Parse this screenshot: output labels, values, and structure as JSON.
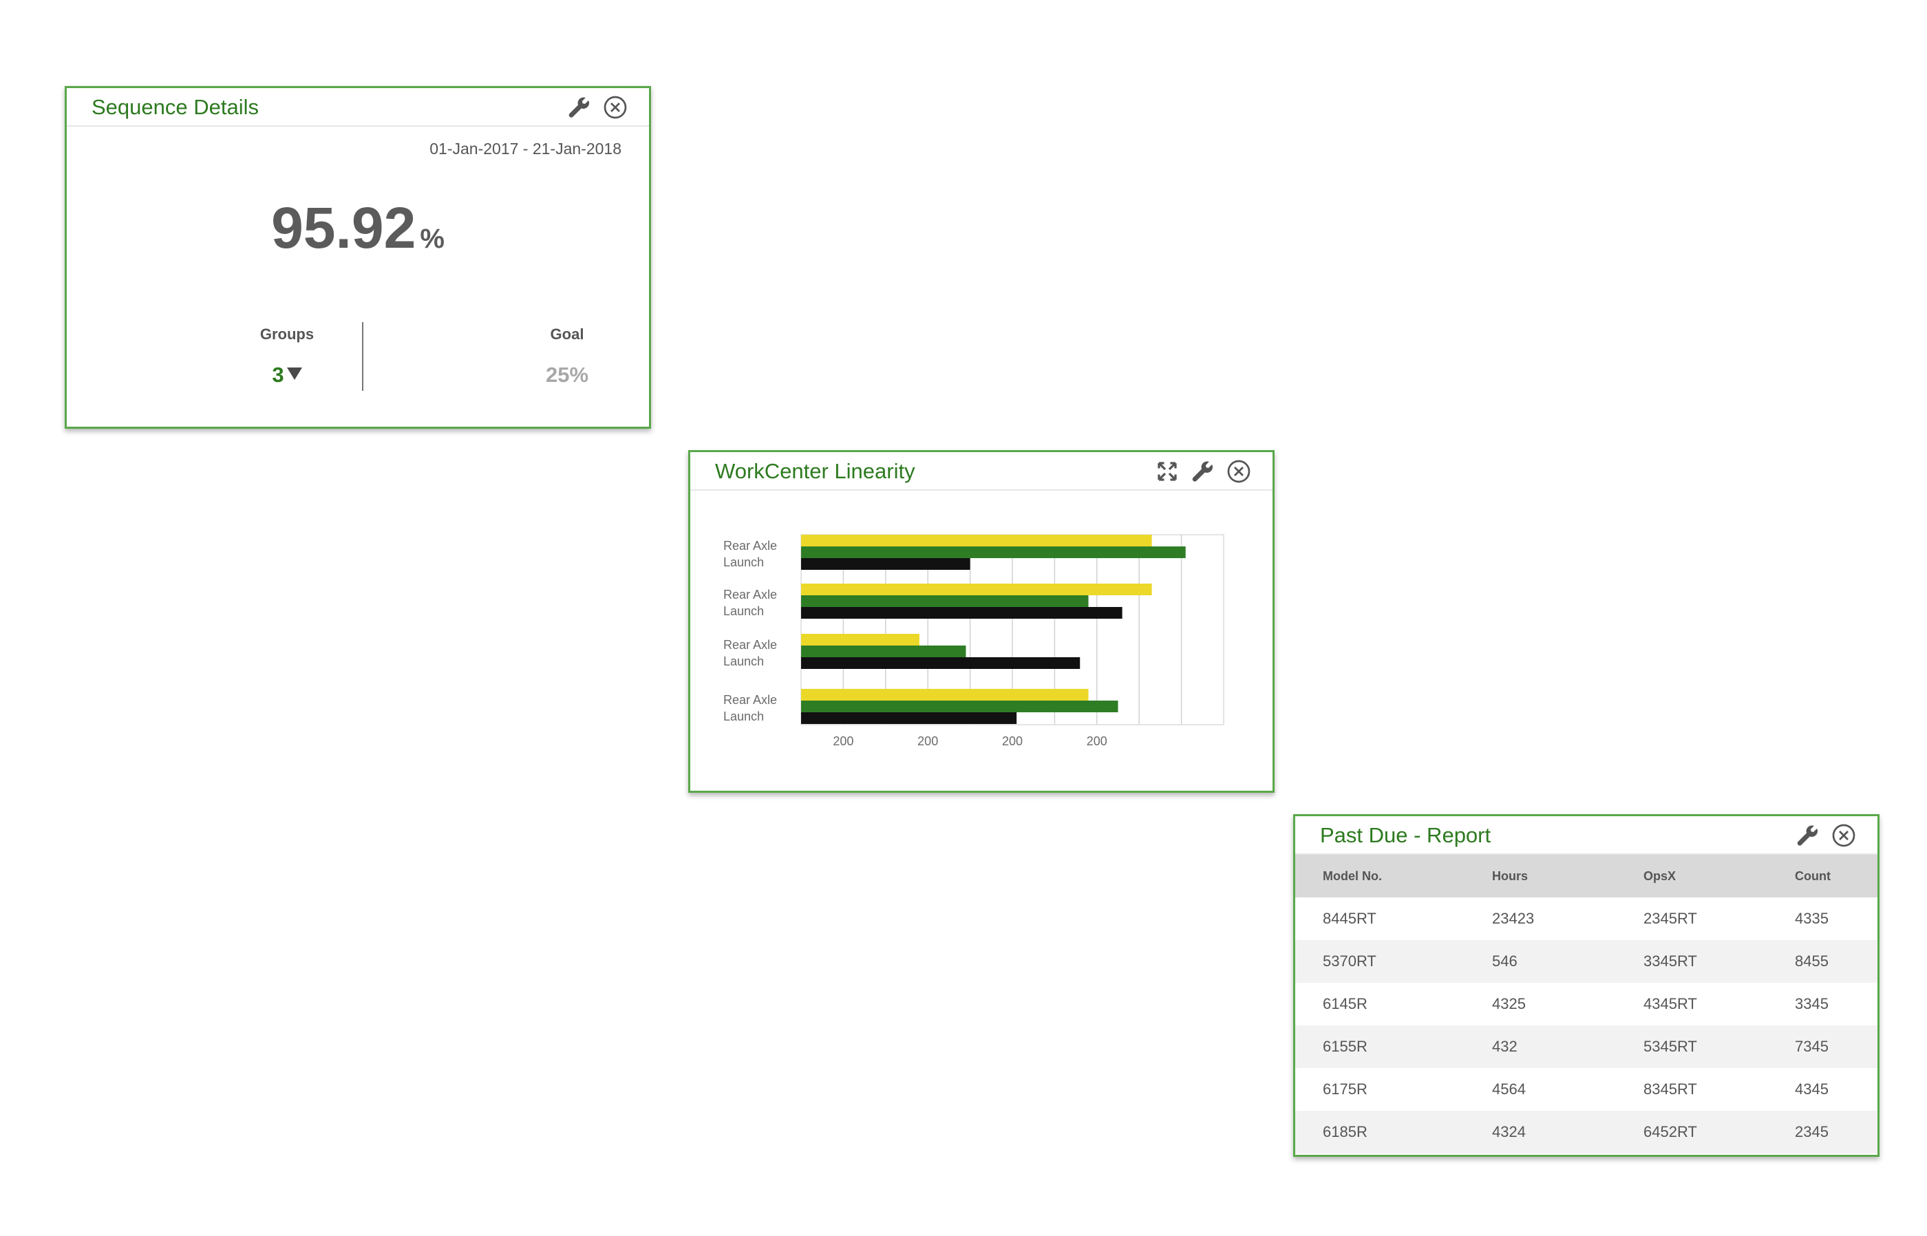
{
  "sequence_details": {
    "title": "Sequence Details",
    "date_range": "01-Jan-2017 - 21-Jan-2018",
    "value": "95.92",
    "unit": "%",
    "groups_label": "Groups",
    "groups_value": "3",
    "goal_label": "Goal",
    "goal_value": "25%",
    "icons": [
      "wrench-icon",
      "close-icon"
    ]
  },
  "workcenter_linearity": {
    "title": "WorkCenter Linearity",
    "icons": [
      "expand-icon",
      "wrench-icon",
      "close-icon"
    ],
    "chart_data": {
      "type": "bar",
      "orientation": "horizontal",
      "categories": [
        "Rear Axle Launch",
        "Rear Axle Launch",
        "Rear Axle Launch",
        "Rear Axle Launch"
      ],
      "series": [
        {
          "color": "#ecd829",
          "values": [
            83,
            83,
            28,
            68
          ]
        },
        {
          "color": "#2e7d25",
          "values": [
            91,
            68,
            39,
            75
          ]
        },
        {
          "color": "#111111",
          "values": [
            40,
            76,
            66,
            51
          ]
        }
      ],
      "x_tick_labels": [
        "200",
        "200",
        "200",
        "200"
      ],
      "xlim": [
        0,
        100
      ],
      "grid": true
    }
  },
  "past_due": {
    "title": "Past Due - Report",
    "icons": [
      "wrench-icon",
      "close-icon"
    ],
    "columns": [
      "Model No.",
      "Hours",
      "OpsX",
      "Count"
    ],
    "rows": [
      [
        "8445RT",
        "23423",
        "2345RT",
        "4335"
      ],
      [
        "5370RT",
        "546",
        "3345RT",
        "8455"
      ],
      [
        "6145R",
        "4325",
        "4345RT",
        "3345"
      ],
      [
        "6155R",
        "432",
        "5345RT",
        "7345"
      ],
      [
        "6175R",
        "4564",
        "8345RT",
        "4345"
      ],
      [
        "6185R",
        "4324",
        "6452RT",
        "2345"
      ]
    ]
  }
}
